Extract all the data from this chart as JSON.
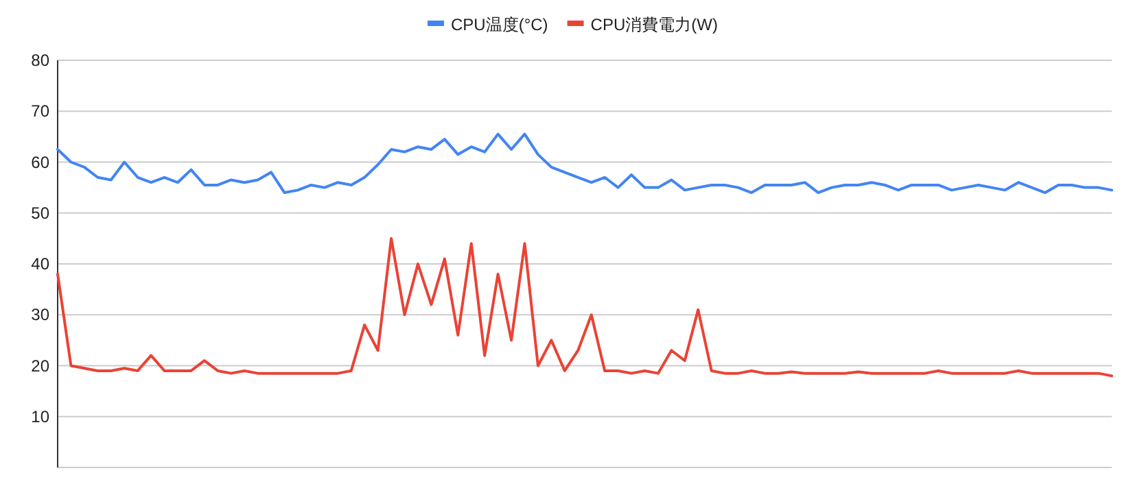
{
  "chart_data": {
    "type": "line",
    "categories": [
      null,
      null,
      null,
      null,
      null,
      null,
      null,
      null,
      null,
      null,
      null,
      null,
      null,
      null,
      null,
      null,
      null,
      null,
      null,
      null,
      null,
      null,
      null,
      null,
      null,
      null,
      null,
      null,
      null,
      null,
      null,
      null,
      null,
      null,
      null,
      null,
      null,
      null,
      null,
      null,
      null,
      null,
      null,
      null,
      null,
      null,
      null,
      null,
      null,
      null,
      null,
      null,
      null,
      null,
      null,
      null,
      null,
      null,
      null,
      null,
      null,
      null,
      null,
      null,
      null,
      null,
      null,
      null,
      null,
      null,
      null,
      null,
      null,
      null,
      null,
      null,
      null,
      null,
      null,
      null
    ],
    "series": [
      {
        "name": "CPU温度(°C)",
        "color": "#4285f4",
        "values": [
          62.5,
          60,
          59,
          57,
          56.5,
          60,
          57,
          56,
          57,
          56,
          58.5,
          55.5,
          55.5,
          56.5,
          56,
          56.5,
          58,
          54,
          54.5,
          55.5,
          55,
          56,
          55.5,
          57,
          59.5,
          62.5,
          62,
          63,
          62.5,
          64.5,
          61.5,
          63,
          62,
          65.5,
          62.5,
          65.5,
          61.5,
          59,
          58,
          57,
          56,
          57,
          55,
          57.5,
          55,
          55,
          56.5,
          54.5,
          55,
          55.5,
          55.5,
          55,
          54,
          55.5,
          55.5,
          55.5,
          56,
          54,
          55,
          55.5,
          55.5,
          56,
          55.5,
          54.5,
          55.5,
          55.5,
          55.5,
          54.5,
          55,
          55.5,
          55,
          54.5,
          56,
          55,
          54,
          55.5,
          55.5,
          55,
          55,
          54.5
        ]
      },
      {
        "name": "CPU消費電力(W)",
        "color": "#ea4335",
        "values": [
          38,
          20,
          19.5,
          19,
          19,
          19.5,
          19,
          22,
          19,
          19,
          19,
          21,
          19,
          18.5,
          19,
          18.5,
          18.5,
          18.5,
          18.5,
          18.5,
          18.5,
          18.5,
          19,
          28,
          23,
          45,
          30,
          40,
          32,
          41,
          26,
          44,
          22,
          38,
          25,
          44,
          20,
          25,
          19,
          23,
          30,
          19,
          19,
          18.5,
          19,
          18.5,
          23,
          21,
          31,
          19,
          18.5,
          18.5,
          19,
          18.5,
          18.5,
          18.8,
          18.5,
          18.5,
          18.5,
          18.5,
          18.8,
          18.5,
          18.5,
          18.5,
          18.5,
          18.5,
          19,
          18.5,
          18.5,
          18.5,
          18.5,
          18.5,
          19,
          18.5,
          18.5,
          18.5,
          18.5,
          18.5,
          18.5,
          18
        ]
      }
    ],
    "ylim": [
      0,
      80
    ],
    "yticks": [
      {
        "value": 0,
        "label": null
      },
      10,
      20,
      30,
      40,
      50,
      60,
      70,
      80
    ],
    "grid": "y",
    "legend": "top"
  }
}
